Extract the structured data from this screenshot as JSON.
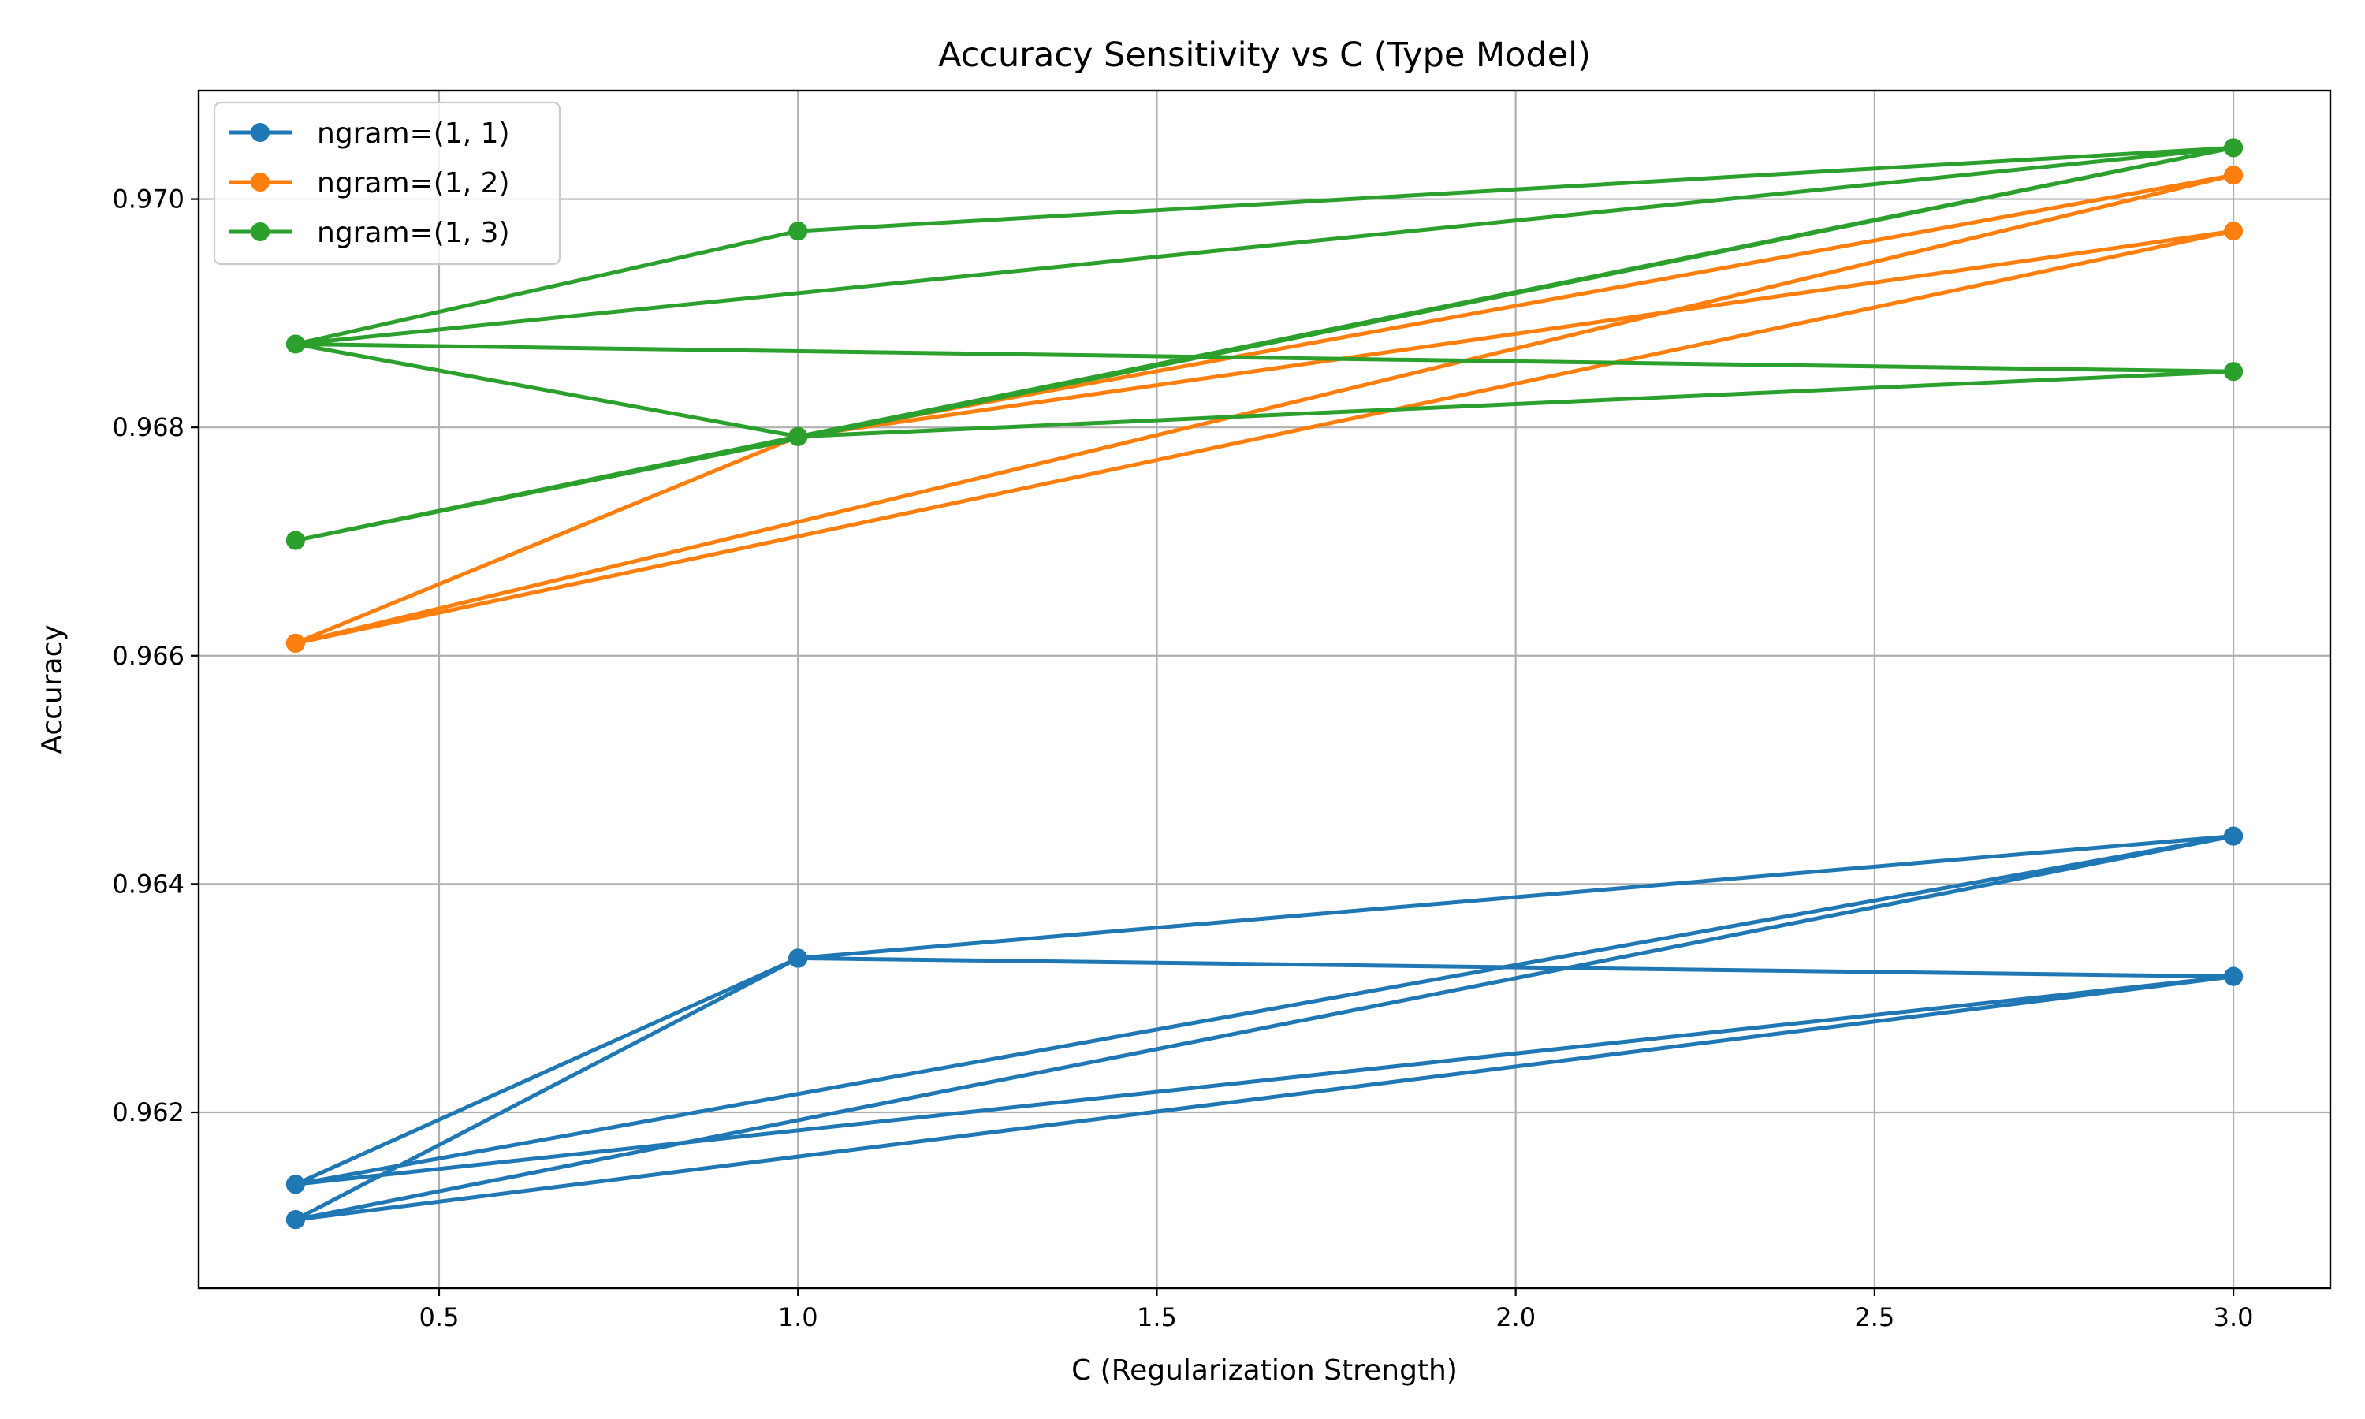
{
  "chart_data": {
    "type": "line",
    "title": "Accuracy Sensitivity vs C (Type Model)",
    "xlabel": "C (Regularization Strength)",
    "ylabel": "Accuracy",
    "xlim": [
      0.165,
      3.135
    ],
    "ylim": [
      0.96046,
      0.97095
    ],
    "xticks": [
      "0.5",
      "1.0",
      "1.5",
      "2.0",
      "2.5",
      "3.0"
    ],
    "yticks": [
      "0.962",
      "0.964",
      "0.966",
      "0.968",
      "0.970"
    ],
    "grid": true,
    "legend_position": "upper left",
    "series": [
      {
        "name": "ngram=(1, 1)",
        "color": "#1f77b4",
        "x": [
          0.3,
          1.0,
          3.0,
          0.3,
          1.0,
          3.0,
          0.3,
          1.0,
          3.0,
          0.3,
          1.0,
          3.0,
          0.3,
          1.0,
          3.0,
          0.3,
          1.0,
          3.0
        ],
        "y": [
          0.96137,
          0.96335,
          0.96442,
          0.96106,
          0.96335,
          0.96442,
          0.96137,
          0.96335,
          0.96319,
          0.96106,
          0.96335,
          0.96319,
          0.96137,
          0.96335,
          0.96442,
          0.96106,
          0.96335,
          0.96319
        ]
      },
      {
        "name": "ngram=(1, 2)",
        "color": "#ff7f0e",
        "x": [
          0.3,
          1.0,
          3.0,
          0.3,
          1.0,
          3.0,
          0.3,
          1.0,
          3.0
        ],
        "y": [
          0.96611,
          0.96792,
          0.97021,
          0.96611,
          0.96792,
          0.96972,
          0.96611,
          0.96792,
          0.97021
        ]
      },
      {
        "name": "ngram=(1, 3)",
        "color": "#2ca02c",
        "x": [
          0.3,
          1.0,
          3.0,
          0.3,
          1.0,
          3.0,
          0.3,
          1.0,
          3.0,
          0.3,
          1.0,
          3.0
        ],
        "y": [
          0.96701,
          0.96792,
          0.97045,
          0.96873,
          0.96792,
          0.96849,
          0.96873,
          0.96972,
          0.97045,
          0.96701,
          0.96792,
          0.96849
        ]
      }
    ]
  }
}
